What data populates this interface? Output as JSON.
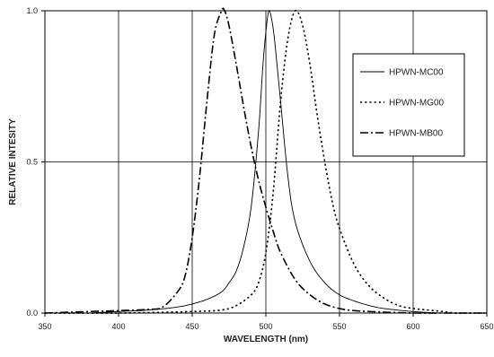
{
  "chart_data": {
    "type": "line",
    "title": "",
    "xlabel": "WAVELENGTH (nm)",
    "ylabel": "RELATIVE INTESITY",
    "xlim": [
      350,
      650
    ],
    "ylim": [
      0,
      1.0
    ],
    "x_ticks": [
      350,
      400,
      450,
      500,
      550,
      600,
      650
    ],
    "y_ticks": [
      0.0,
      0.5,
      1.0
    ],
    "x_tick_labels": [
      "350",
      "400",
      "450",
      "500",
      "550",
      "600",
      "650"
    ],
    "y_tick_labels": [
      "0.0",
      "0.5",
      "1.0"
    ],
    "grid": true,
    "legend_position": "top-right",
    "series": [
      {
        "name": "HPWN-MC00",
        "style": "solid",
        "width": 0.9,
        "x": [
          380,
          400,
          420,
          440,
          450,
          460,
          470,
          475,
          480,
          485,
          490,
          495,
          498,
          500,
          502,
          504,
          506,
          510,
          515,
          520,
          530,
          540,
          550,
          560,
          570,
          580,
          600,
          620,
          650
        ],
        "y": [
          0.0,
          0.005,
          0.01,
          0.02,
          0.03,
          0.045,
          0.07,
          0.1,
          0.14,
          0.22,
          0.35,
          0.6,
          0.82,
          0.93,
          1.0,
          0.97,
          0.9,
          0.7,
          0.45,
          0.3,
          0.17,
          0.1,
          0.06,
          0.04,
          0.025,
          0.015,
          0.005,
          0.0,
          0.0
        ]
      },
      {
        "name": "HPWN-MG00",
        "style": "dotted",
        "width": 1.6,
        "x": [
          350,
          400,
          450,
          470,
          480,
          490,
          495,
          500,
          505,
          510,
          515,
          520,
          525,
          530,
          535,
          540,
          545,
          550,
          560,
          570,
          580,
          590,
          600,
          610,
          620,
          630,
          650
        ],
        "y": [
          0.0,
          0.0,
          0.005,
          0.01,
          0.025,
          0.06,
          0.1,
          0.2,
          0.4,
          0.7,
          0.91,
          1.0,
          0.95,
          0.82,
          0.65,
          0.5,
          0.37,
          0.28,
          0.16,
          0.09,
          0.05,
          0.025,
          0.015,
          0.01,
          0.005,
          0.0,
          0.0
        ]
      },
      {
        "name": "HPWN-MB00",
        "style": "dashdot",
        "width": 1.6,
        "x": [
          350,
          380,
          400,
          420,
          430,
          440,
          445,
          450,
          455,
          460,
          465,
          470,
          472,
          475,
          480,
          485,
          490,
          495,
          500,
          505,
          510,
          520,
          530,
          540,
          550,
          560,
          580,
          600,
          620,
          650
        ],
        "y": [
          0.0,
          0.005,
          0.008,
          0.012,
          0.02,
          0.07,
          0.12,
          0.25,
          0.45,
          0.7,
          0.92,
          1.0,
          1.0,
          0.95,
          0.82,
          0.68,
          0.55,
          0.44,
          0.35,
          0.27,
          0.2,
          0.11,
          0.06,
          0.03,
          0.015,
          0.008,
          0.003,
          0.0,
          0.0,
          0.0
        ]
      }
    ]
  }
}
